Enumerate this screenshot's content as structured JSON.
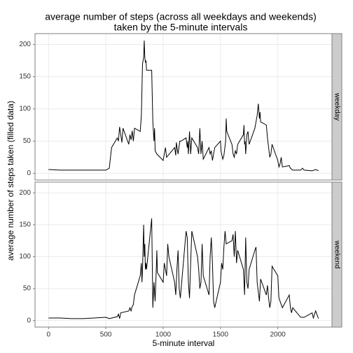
{
  "chart_data": [
    {
      "type": "line",
      "title": [
        "average number of steps (across all weekdays and weekends)",
        "taken by the 5-minute intervals"
      ],
      "ylabel": "average number of steps taken (filled data)",
      "strip": "weekday",
      "color": "#000000",
      "x": [
        0,
        100,
        200,
        300,
        400,
        500,
        530,
        550,
        600,
        610,
        620,
        630,
        640,
        650,
        700,
        710,
        720,
        730,
        740,
        750,
        800,
        810,
        820,
        830,
        835,
        840,
        845,
        850,
        855,
        900,
        905,
        910,
        915,
        920,
        925,
        930,
        945,
        1000,
        1010,
        1020,
        1030,
        1100,
        1110,
        1115,
        1130,
        1145,
        1155,
        1200,
        1210,
        1215,
        1220,
        1230,
        1240,
        1250,
        1300,
        1310,
        1320,
        1330,
        1340,
        1350,
        1400,
        1410,
        1420,
        1430,
        1440,
        1450,
        1500,
        1505,
        1510,
        1520,
        1530,
        1545,
        1550,
        1555,
        1600,
        1610,
        1620,
        1630,
        1640,
        1650,
        1700,
        1705,
        1710,
        1715,
        1720,
        1730,
        1740,
        1750,
        1800,
        1810,
        1820,
        1830,
        1840,
        1845,
        1850,
        1900,
        1910,
        1920,
        1930,
        1940,
        1950,
        2000,
        2010,
        2020,
        2030,
        2040,
        2100,
        2110,
        2130,
        2200,
        2215,
        2230,
        2300,
        2330,
        2355
      ],
      "values": [
        6,
        5,
        5,
        5,
        5,
        5,
        8,
        40,
        55,
        50,
        72,
        60,
        48,
        70,
        45,
        60,
        52,
        66,
        50,
        70,
        65,
        90,
        170,
        180,
        206,
        180,
        172,
        175,
        160,
        160,
        120,
        80,
        65,
        50,
        70,
        35,
        30,
        20,
        30,
        40,
        25,
        40,
        28,
        48,
        30,
        50,
        50,
        55,
        40,
        50,
        30,
        65,
        30,
        55,
        40,
        30,
        70,
        30,
        50,
        22,
        40,
        30,
        35,
        20,
        30,
        40,
        50,
        35,
        30,
        22,
        28,
        50,
        85,
        65,
        45,
        30,
        25,
        35,
        30,
        45,
        60,
        75,
        45,
        50,
        30,
        60,
        65,
        45,
        70,
        80,
        90,
        108,
        85,
        95,
        80,
        75,
        55,
        40,
        25,
        30,
        45,
        20,
        10,
        15,
        25,
        10,
        12,
        8,
        5,
        5,
        8,
        5,
        4,
        6,
        4
      ],
      "xlim": [
        -117.75,
        2472.75
      ],
      "ylim": [
        -10.3,
        216.8
      ],
      "yticks": [
        0,
        50,
        100,
        150,
        200
      ],
      "grid": true
    },
    {
      "type": "line",
      "xlabel": "5-minute interval",
      "strip": "weekend",
      "color": "#000000",
      "x": [
        0,
        100,
        200,
        300,
        400,
        500,
        530,
        600,
        610,
        620,
        630,
        700,
        710,
        720,
        730,
        740,
        750,
        800,
        810,
        815,
        820,
        830,
        835,
        840,
        845,
        850,
        855,
        900,
        905,
        910,
        915,
        920,
        930,
        940,
        945,
        950,
        1000,
        1010,
        1020,
        1030,
        1040,
        1050,
        1100,
        1110,
        1120,
        1130,
        1140,
        1150,
        1200,
        1210,
        1220,
        1230,
        1240,
        1250,
        1300,
        1310,
        1320,
        1330,
        1340,
        1350,
        1400,
        1410,
        1420,
        1430,
        1440,
        1450,
        1500,
        1510,
        1520,
        1530,
        1540,
        1550,
        1600,
        1610,
        1620,
        1630,
        1640,
        1650,
        1700,
        1710,
        1720,
        1730,
        1740,
        1750,
        1800,
        1810,
        1820,
        1830,
        1840,
        1850,
        1900,
        1910,
        1920,
        1930,
        1940,
        1950,
        2000,
        2010,
        2030,
        2040,
        2100,
        2110,
        2120,
        2130,
        2200,
        2230,
        2300,
        2310,
        2330,
        2355
      ],
      "values": [
        4,
        4,
        3,
        3,
        4,
        5,
        3,
        6,
        10,
        3,
        12,
        15,
        20,
        15,
        22,
        25,
        40,
        70,
        90,
        60,
        80,
        150,
        100,
        120,
        80,
        90,
        80,
        160,
        90,
        20,
        40,
        60,
        30,
        80,
        110,
        75,
        60,
        90,
        80,
        70,
        120,
        100,
        60,
        40,
        80,
        110,
        50,
        35,
        140,
        130,
        60,
        35,
        90,
        140,
        100,
        80,
        50,
        60,
        120,
        70,
        40,
        100,
        130,
        90,
        30,
        20,
        60,
        90,
        80,
        115,
        140,
        120,
        125,
        135,
        100,
        140,
        90,
        110,
        80,
        40,
        130,
        60,
        50,
        80,
        110,
        115,
        60,
        45,
        30,
        65,
        40,
        55,
        35,
        20,
        30,
        85,
        70,
        35,
        25,
        20,
        40,
        20,
        12,
        20,
        5,
        5,
        12,
        4,
        15,
        3
      ],
      "xlim": [
        -117.75,
        2472.75
      ],
      "ylim": [
        -10.3,
        216.8
      ],
      "yticks": [
        0,
        50,
        100,
        150,
        200
      ],
      "xticks": [
        0,
        500,
        1000,
        1500,
        2000
      ],
      "grid": true
    }
  ]
}
